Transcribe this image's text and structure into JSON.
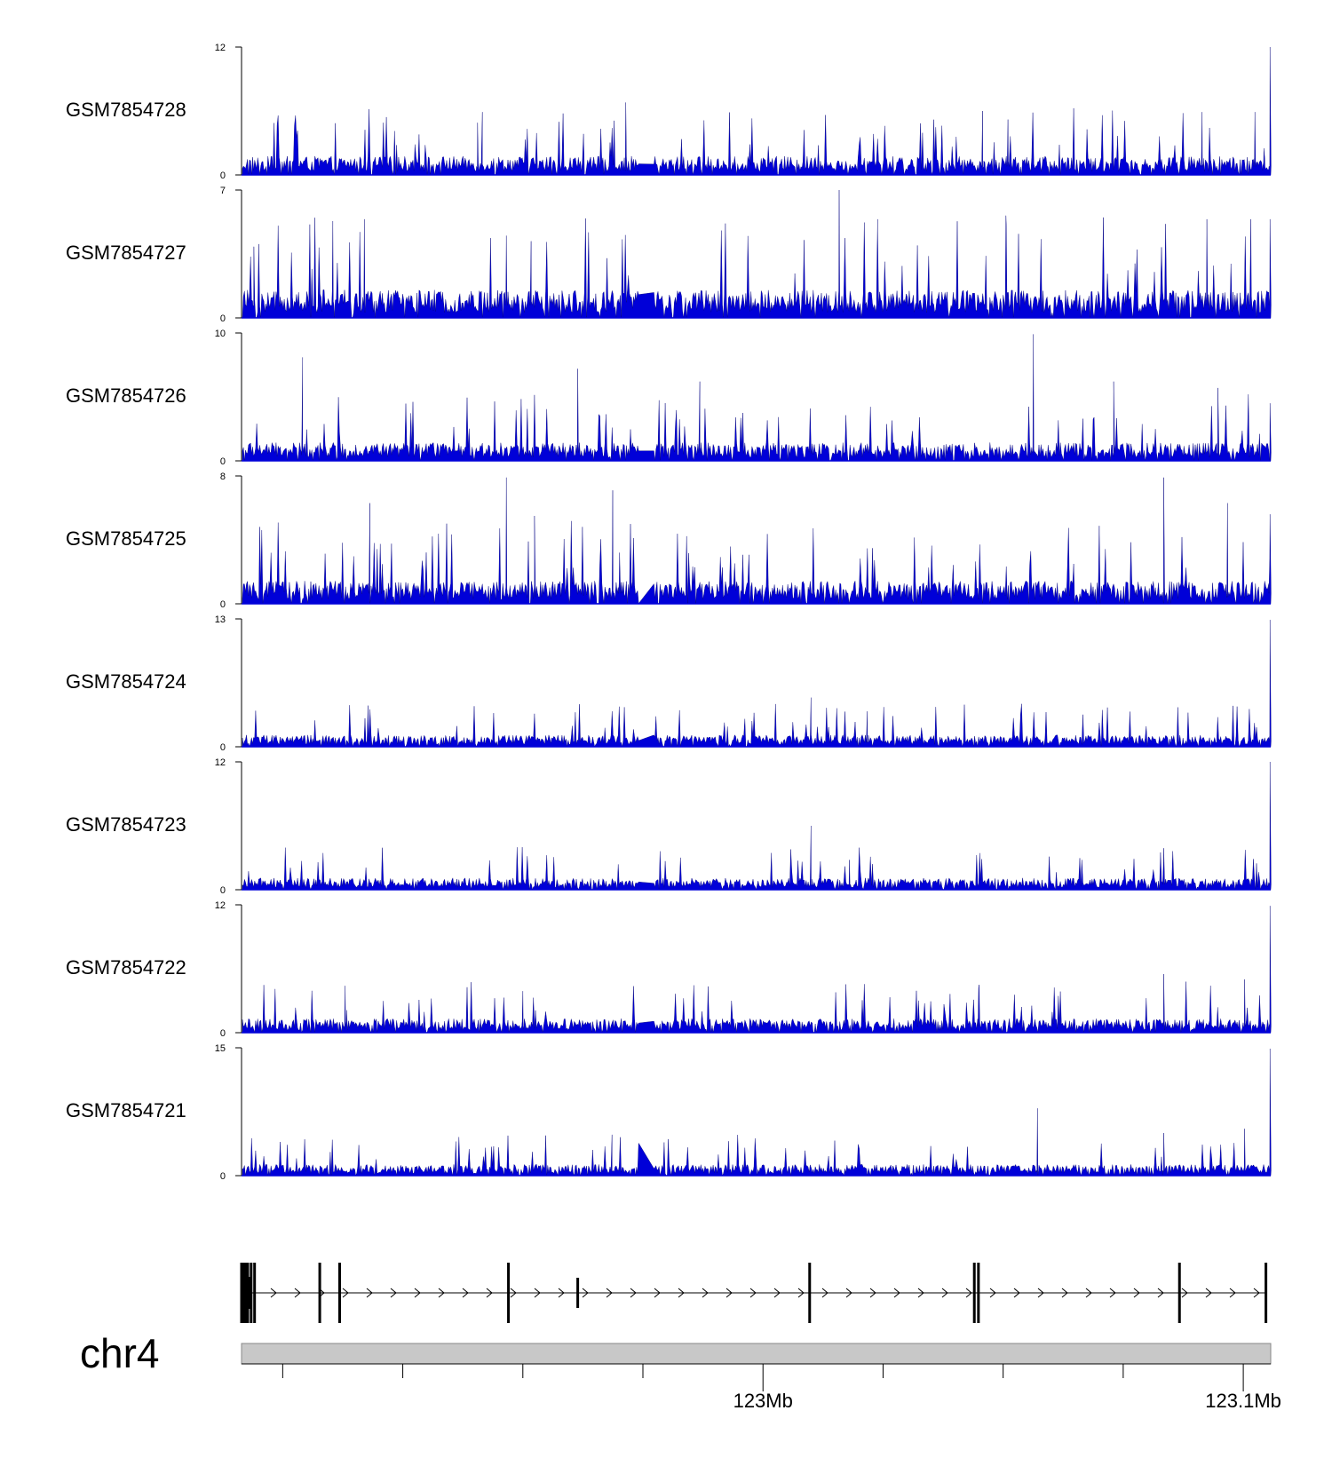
{
  "colors": {
    "signal": "#0000d8",
    "signal_stroke": "#00007a",
    "axis": "#000000",
    "ideogram": "#c8c8c8",
    "ideogram_edge": "#888888",
    "gene": "#000000"
  },
  "chart_data": {
    "type": "area",
    "title": "",
    "chromosome": "chr4",
    "xlim_mb": [
      122.9665,
      123.1165
    ],
    "x_ticks_mb": [
      122.9725,
      122.99,
      123.0075,
      123.025,
      123.0425,
      123.06,
      123.0775,
      123.095,
      123.1125
    ],
    "x_tick_labels": [
      {
        "pos_mb": 123.0425,
        "label": "123Mb"
      },
      {
        "pos_mb": 123.1125,
        "label": "123.1Mb"
      }
    ],
    "signal_gap_mb": [
      123.0245,
      123.0265
    ],
    "tracks": [
      {
        "name": "GSM7854728",
        "ymax": 12,
        "ymin": 0,
        "baseline": 1.6,
        "peaks": [
          {
            "x": 123.0225,
            "y": 6.8
          },
          {
            "x": 123.0009,
            "y": 4.9
          },
          {
            "x": 123.0016,
            "y": 5.9
          },
          {
            "x": 123.0745,
            "y": 6.0
          },
          {
            "x": 123.0782,
            "y": 5.2
          },
          {
            "x": 123.1142,
            "y": 5.9
          },
          {
            "x": 123.1065,
            "y": 5.9
          },
          {
            "x": 123.1155,
            "y": 2.5
          },
          {
            "x": 123.1164,
            "y": 12.0
          }
        ]
      },
      {
        "name": "GSM7854727",
        "ymax": 7,
        "ymin": 0,
        "baseline": 1.4,
        "peaks": [
          {
            "x": 122.9683,
            "y": 3.9
          },
          {
            "x": 122.9798,
            "y": 5.3
          },
          {
            "x": 122.9844,
            "y": 5.4
          },
          {
            "x": 123.0051,
            "y": 4.5
          },
          {
            "x": 123.0087,
            "y": 4.2
          },
          {
            "x": 123.0536,
            "y": 7.0
          },
          {
            "x": 123.0592,
            "y": 5.4
          },
          {
            "x": 123.0779,
            "y": 5.6
          },
          {
            "x": 123.1072,
            "y": 5.4
          },
          {
            "x": 123.1136,
            "y": 5.4
          },
          {
            "x": 123.1164,
            "y": 5.4
          }
        ]
      },
      {
        "name": "GSM7854726",
        "ymax": 10,
        "ymin": 0,
        "baseline": 1.3,
        "peaks": [
          {
            "x": 122.9754,
            "y": 8.1
          },
          {
            "x": 123.0155,
            "y": 7.2
          },
          {
            "x": 123.0333,
            "y": 6.2
          },
          {
            "x": 123.0819,
            "y": 9.9
          },
          {
            "x": 123.0936,
            "y": 6.2
          },
          {
            "x": 123.1088,
            "y": 5.7
          },
          {
            "x": 123.1164,
            "y": 4.5
          }
        ]
      },
      {
        "name": "GSM7854725",
        "ymax": 8,
        "ymin": 0,
        "baseline": 1.3,
        "peaks": [
          {
            "x": 122.9852,
            "y": 6.3
          },
          {
            "x": 123.0092,
            "y": 5.5
          },
          {
            "x": 123.0051,
            "y": 7.9
          },
          {
            "x": 123.0206,
            "y": 7.1
          },
          {
            "x": 123.0216,
            "y": 3.2
          },
          {
            "x": 123.1009,
            "y": 7.9
          },
          {
            "x": 123.1102,
            "y": 6.3
          },
          {
            "x": 123.1164,
            "y": 5.6
          }
        ]
      },
      {
        "name": "GSM7854724",
        "ymax": 13,
        "ymin": 0,
        "baseline": 1.1,
        "peaks": [
          {
            "x": 122.9849,
            "y": 3.2
          },
          {
            "x": 123.0495,
            "y": 5.0
          },
          {
            "x": 123.0577,
            "y": 3.6
          },
          {
            "x": 123.1164,
            "y": 12.9
          }
        ]
      },
      {
        "name": "GSM7854723",
        "ymax": 12,
        "ymin": 0,
        "baseline": 1.0,
        "peaks": [
          {
            "x": 123.0495,
            "y": 6.0
          },
          {
            "x": 123.0551,
            "y": 2.8
          },
          {
            "x": 123.1009,
            "y": 3.9
          },
          {
            "x": 123.1164,
            "y": 12.0
          }
        ]
      },
      {
        "name": "GSM7854722",
        "ymax": 12,
        "ymin": 0,
        "baseline": 1.2,
        "peaks": [
          {
            "x": 122.9816,
            "y": 4.4
          },
          {
            "x": 123.0075,
            "y": 3.9
          },
          {
            "x": 123.074,
            "y": 4.5
          },
          {
            "x": 123.1009,
            "y": 5.5
          },
          {
            "x": 123.1127,
            "y": 5.0
          },
          {
            "x": 123.1164,
            "y": 11.9
          }
        ]
      },
      {
        "name": "GSM7854721",
        "ymax": 15,
        "ymin": 0,
        "baseline": 1.2,
        "peaks": [
          {
            "x": 123.0205,
            "y": 4.8
          },
          {
            "x": 123.0825,
            "y": 7.9
          },
          {
            "x": 123.1009,
            "y": 5.0
          },
          {
            "x": 123.1127,
            "y": 5.5
          },
          {
            "x": 123.1164,
            "y": 14.9
          }
        ]
      }
    ],
    "gene_model": {
      "strand": "+",
      "exons_mb": [
        122.9665,
        122.9668,
        122.9671,
        122.9674,
        122.9679,
        122.9684,
        122.9779,
        122.9808,
        123.0054,
        123.0155,
        123.0493,
        123.0733,
        123.0739,
        123.1032,
        123.1158
      ]
    }
  }
}
